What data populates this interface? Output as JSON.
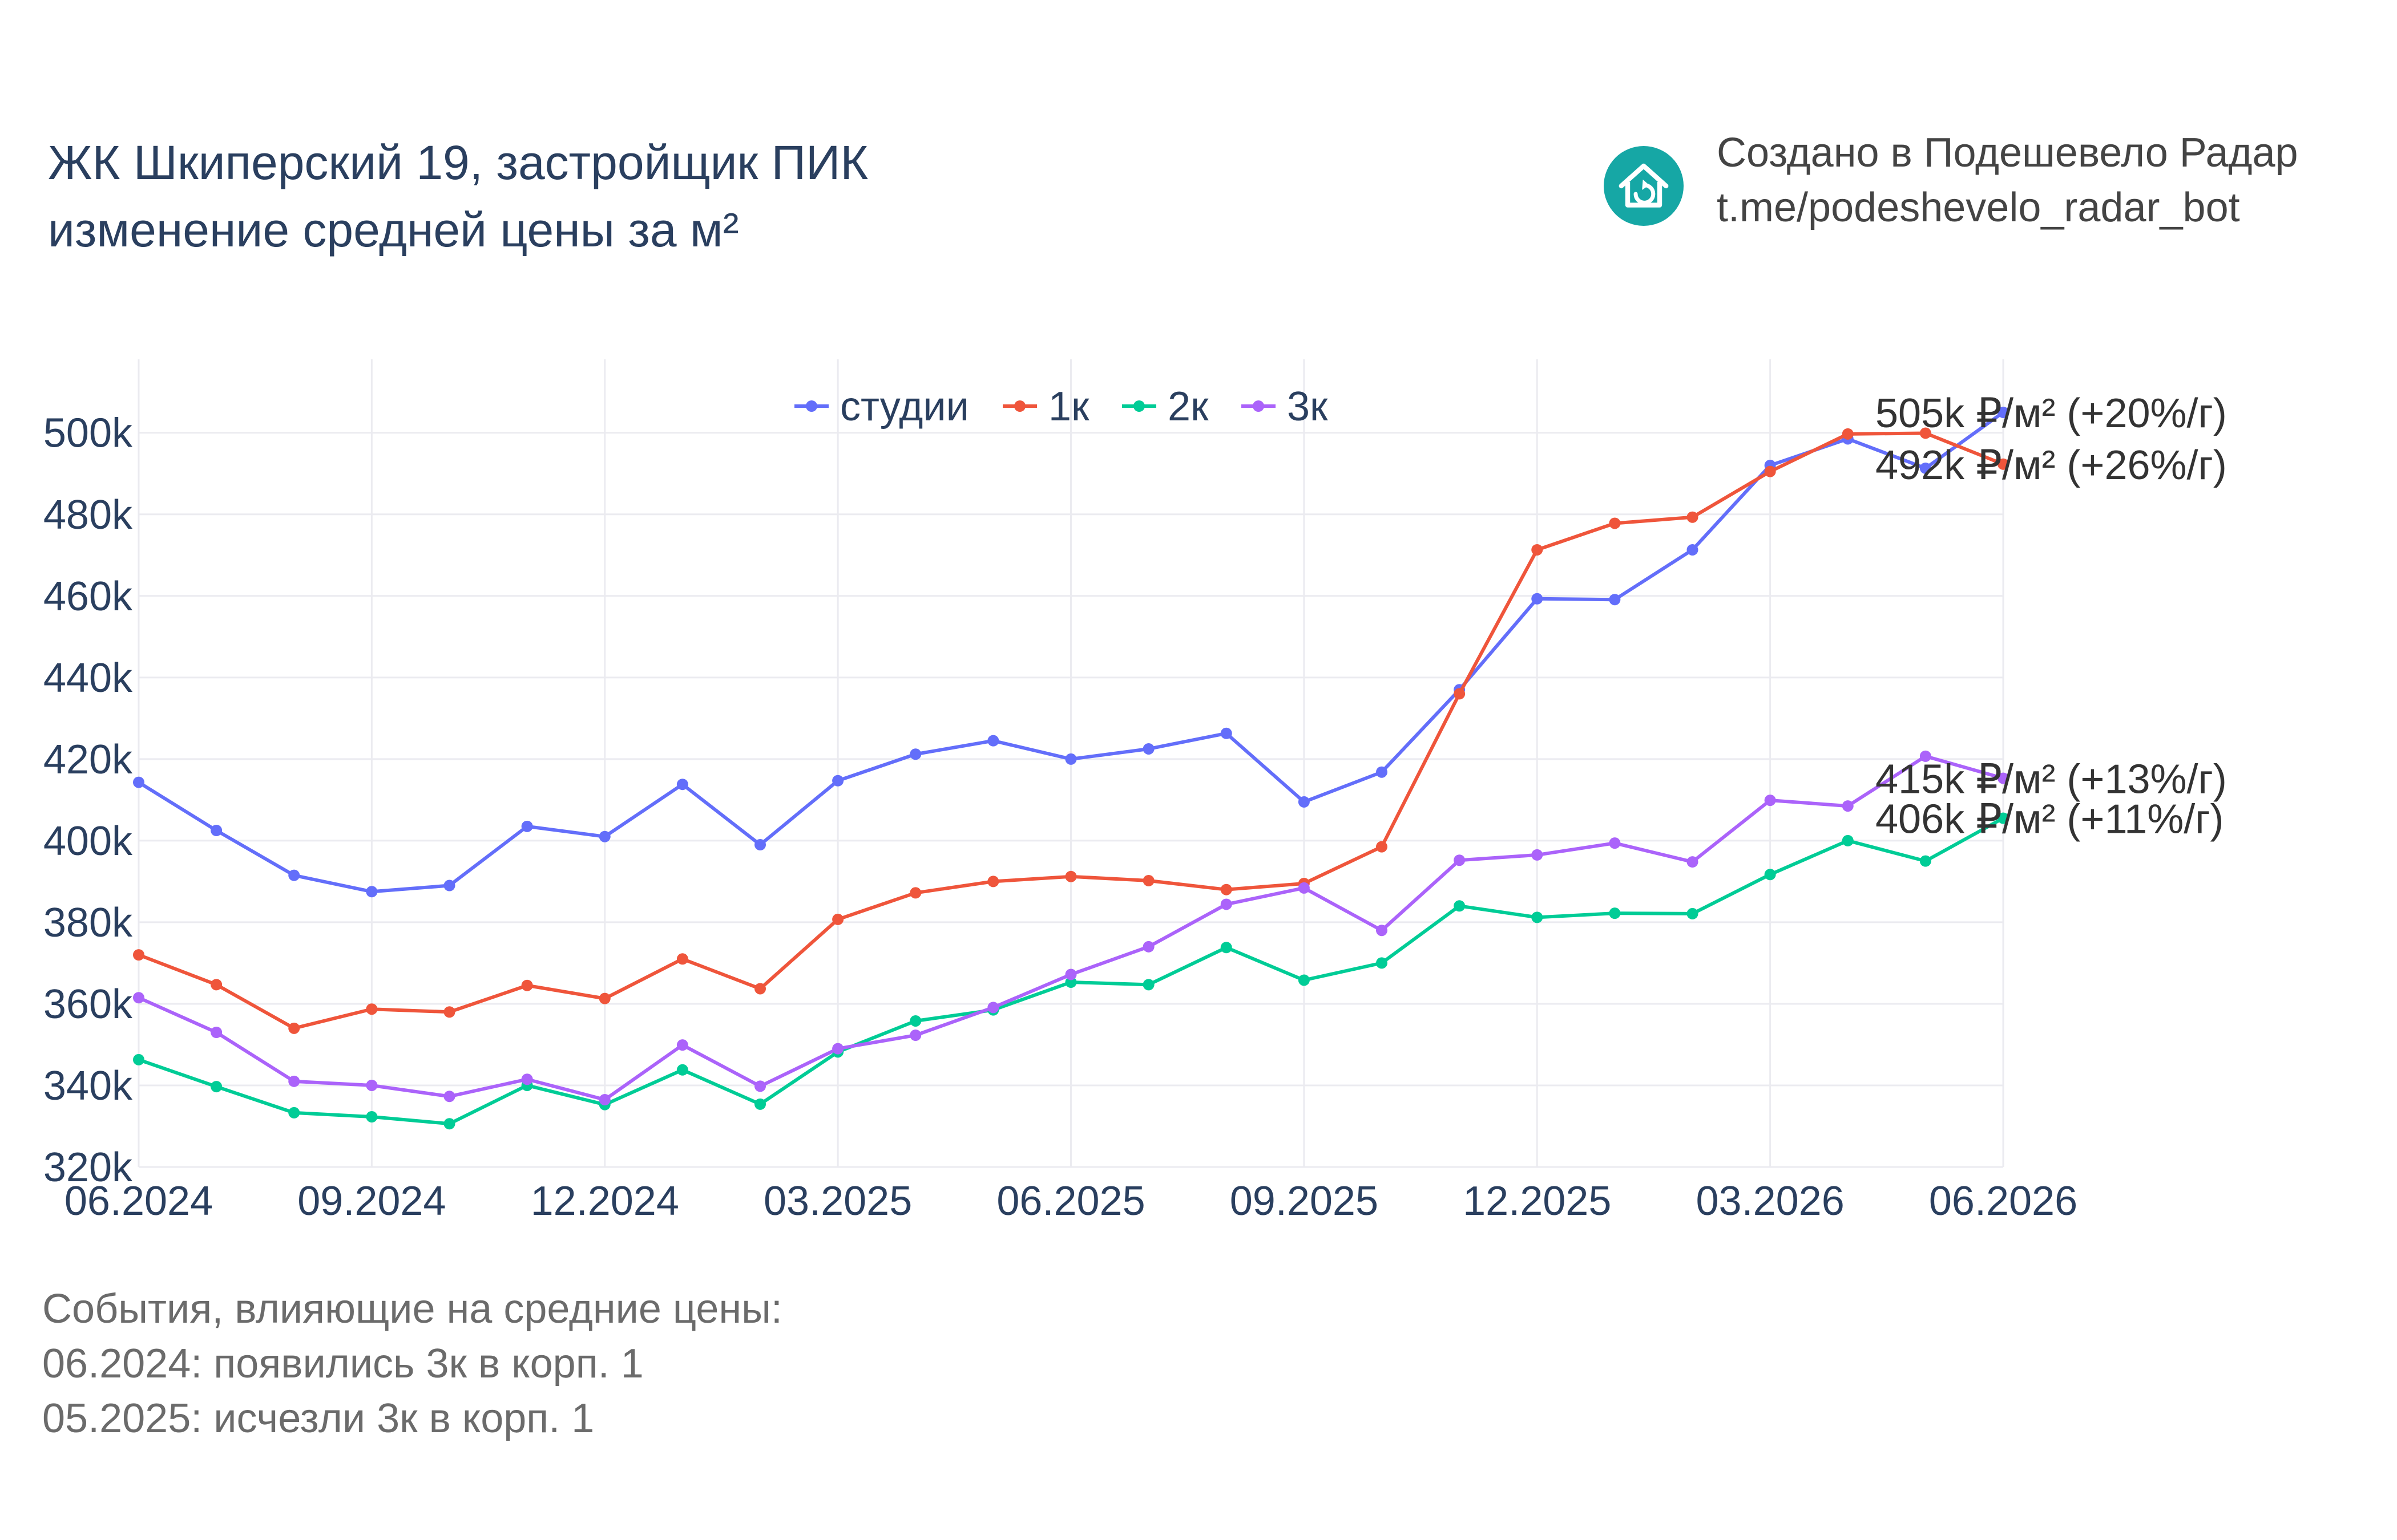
{
  "header": {
    "title_line1": "ЖК Шкиперский 19, застройщик ПИК",
    "title_line2": "изменение средней цены за м²",
    "credit_line1": "Создано в Подешевело Радар",
    "credit_line2": "t.me/podeshevelo_radar_bot",
    "logo_icon": "house-refresh-icon",
    "logo_color": "#16a7a5"
  },
  "events": {
    "heading": "События, влияющие на средние цены:",
    "items": [
      "06.2024: появились 3к в корп. 1",
      "05.2025: исчезли 3к в корп. 1"
    ]
  },
  "chart_data": {
    "type": "line",
    "x": [
      "06.2024",
      "07.2024",
      "08.2024",
      "09.2024",
      "10.2024",
      "11.2024",
      "12.2024",
      "01.2025",
      "02.2025",
      "03.2025",
      "04.2025",
      "05.2025",
      "06.2025",
      "07.2025",
      "08.2025",
      "09.2025",
      "10.2025",
      "11.2025",
      "12.2025",
      "01.2026",
      "02.2026",
      "03.2026",
      "04.2026",
      "05.2026",
      "06.2026"
    ],
    "x_ticks": [
      "06.2024",
      "09.2024",
      "12.2024",
      "03.2025",
      "06.2025",
      "09.2025",
      "12.2025",
      "03.2026",
      "06.2026"
    ],
    "y_ticks": [
      320000,
      340000,
      360000,
      380000,
      400000,
      420000,
      440000,
      460000,
      480000,
      500000
    ],
    "y_tick_labels": [
      "320k",
      "340k",
      "360k",
      "380k",
      "400k",
      "420k",
      "440k",
      "460k",
      "480k",
      "500k"
    ],
    "ylim": [
      320000,
      518000
    ],
    "grid": true,
    "legend_position": "top-center",
    "series": [
      {
        "name": "студии",
        "color": "#636efa",
        "end_label": "505k ₽/м² (+20%/г)",
        "values": [
          414300,
          402500,
          391500,
          387500,
          389000,
          403500,
          401000,
          413800,
          399000,
          414700,
          421200,
          424500,
          420000,
          422500,
          426300,
          409500,
          416800,
          437000,
          459300,
          459100,
          471300,
          492000,
          498500,
          491300,
          505000
        ]
      },
      {
        "name": "1к",
        "color": "#ef553b",
        "end_label": "492k ₽/м² (+26%/г)",
        "values": [
          372000,
          364700,
          354000,
          358700,
          358000,
          364500,
          361300,
          371000,
          363700,
          380700,
          387200,
          390000,
          391200,
          390200,
          388000,
          389500,
          398500,
          436000,
          471300,
          477800,
          479300,
          490500,
          499700,
          499900,
          492300
        ]
      },
      {
        "name": "2к",
        "color": "#00cc96",
        "end_label": "406k ₽/м² (+11%/г)",
        "values": [
          346300,
          339700,
          333300,
          332300,
          330600,
          340000,
          335300,
          343800,
          335400,
          348200,
          355800,
          358500,
          365300,
          364700,
          373800,
          365800,
          370000,
          384000,
          381200,
          382200,
          382100,
          391700,
          400000,
          395000,
          405500
        ]
      },
      {
        "name": "3к",
        "color": "#ab63fa",
        "end_label": "415k ₽/м² (+13%/г)",
        "values": [
          361500,
          353000,
          341000,
          340000,
          337300,
          341500,
          336500,
          349900,
          339800,
          349000,
          352300,
          359100,
          367200,
          374000,
          384400,
          388400,
          378000,
          395200,
          396500,
          399400,
          394800,
          409900,
          408500,
          420700,
          415300
        ]
      }
    ]
  }
}
